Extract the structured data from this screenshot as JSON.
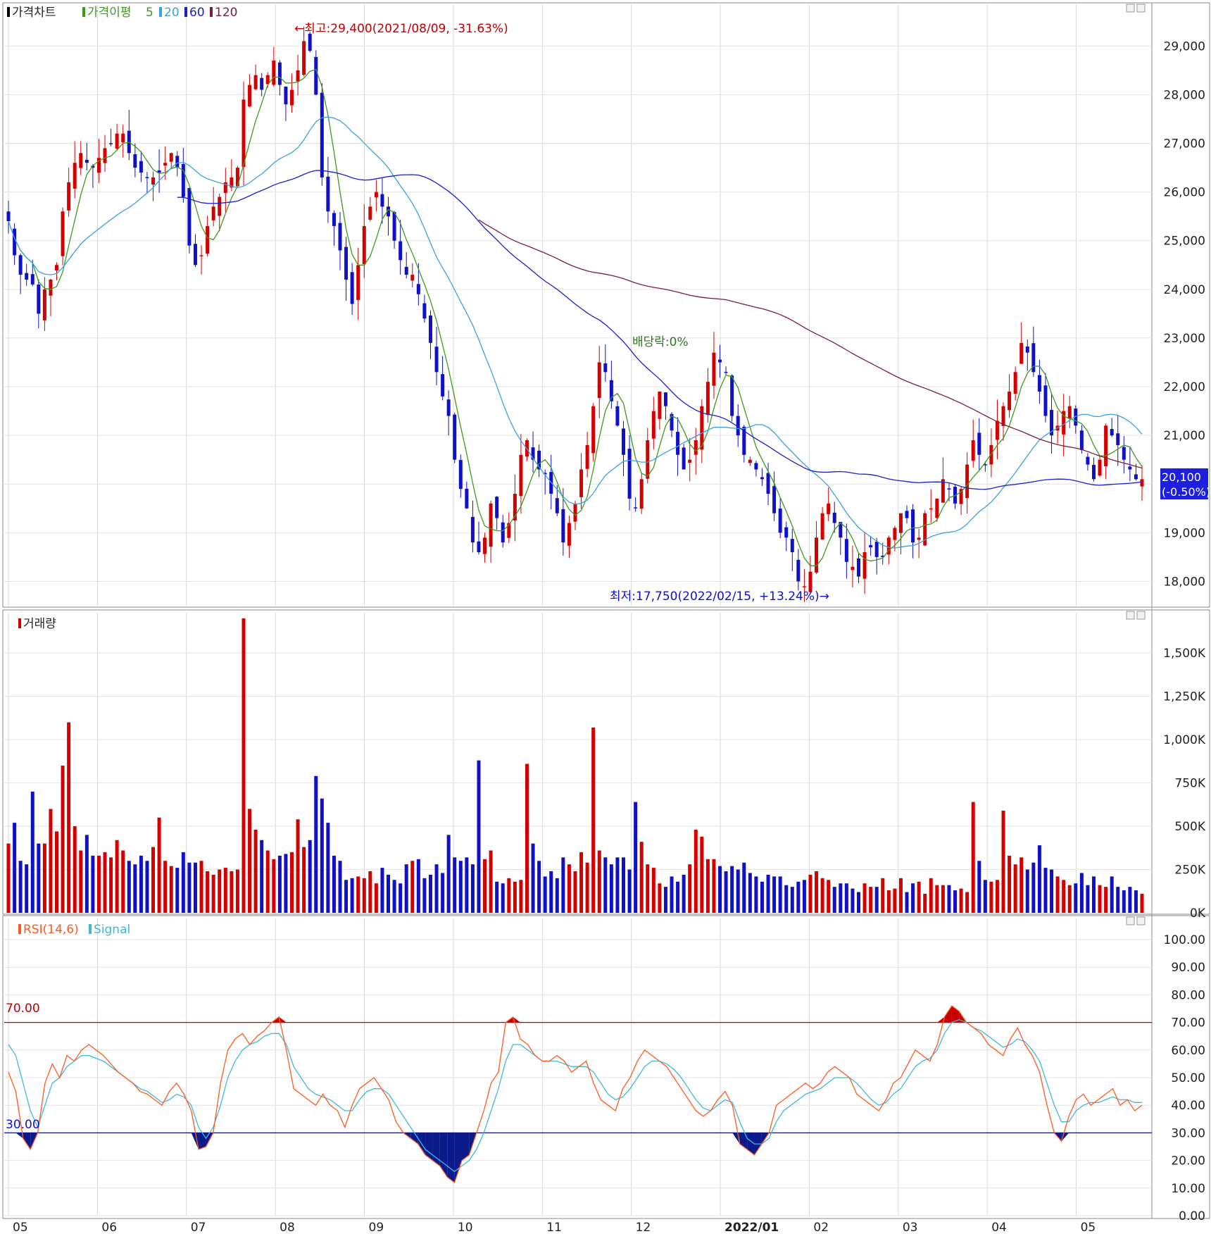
{
  "panels": {
    "price": {
      "legend_title": "가격차트",
      "legend_ma_title": "가격이평",
      "legend_ma_periods": [
        "5",
        "20",
        "60",
        "120"
      ],
      "y_ticks": [
        "29,000",
        "28,000",
        "27,000",
        "26,000",
        "25,000",
        "24,000",
        "23,000",
        "22,000",
        "21,000",
        "20,000",
        "19,000",
        "18,000"
      ],
      "current_price_label": "20,100",
      "current_change_label": "(-0.50%)",
      "annotation_high": "←최고:29,400(2021/08/09, -31.63%)",
      "annotation_low": "최저:17,750(2022/02/15, +13.24%)→",
      "annotation_dividend": "배당락:0%"
    },
    "volume": {
      "legend_title": "거래량",
      "y_ticks": [
        "1,500K",
        "1,250K",
        "1,000K",
        "750K",
        "500K",
        "250K",
        "0K"
      ]
    },
    "rsi": {
      "legend_title": "RSI(14,6)",
      "legend_signal": "Signal",
      "y_ticks": [
        "100.00",
        "90.00",
        "80.00",
        "70.00",
        "60.00",
        "50.00",
        "40.00",
        "30.00",
        "20.00",
        "10.00",
        "0.00"
      ],
      "upper_label": "70.00",
      "lower_label": "30.00"
    }
  },
  "x_axis": {
    "months": [
      "05",
      "06",
      "07",
      "08",
      "09",
      "10",
      "11",
      "12",
      "2022/01",
      "02",
      "03",
      "04",
      "05"
    ]
  },
  "colors": {
    "up": "#d40000",
    "down": "#1010c8",
    "ma5": "#3c9a1c",
    "ma20": "#3ba0e0",
    "ma60": "#1e1ec8",
    "ma120": "#7a1e3c",
    "rsi": "#ff5a1e",
    "signal": "#40b8d8",
    "grid": "#e0e0e0"
  },
  "chart_data": [
    {
      "type": "candlestick",
      "title": "가격차트",
      "ylim": [
        17500,
        29800
      ],
      "ma_periods": [
        5,
        20,
        60,
        120
      ],
      "high_point": {
        "value": 29400,
        "date": "2021/08/09"
      },
      "low_point": {
        "value": 17750,
        "date": "2022/02/15"
      },
      "last_close": 20100,
      "last_change_pct": -0.5,
      "x_month_labels": [
        "05",
        "06",
        "07",
        "08",
        "09",
        "10",
        "11",
        "12",
        "2022/01",
        "02",
        "03",
        "04",
        "05"
      ],
      "closes_approx": [
        25400,
        24700,
        24300,
        24200,
        24100,
        23500,
        24000,
        24200,
        24500,
        25600,
        26200,
        26600,
        26800,
        26600,
        26500,
        26700,
        26900,
        27000,
        27200,
        27200,
        26800,
        26500,
        26400,
        26300,
        26300,
        26400,
        26600,
        26800,
        26500,
        25900,
        24900,
        24500,
        24700,
        25300,
        25700,
        25900,
        26200,
        26300,
        26500,
        27900,
        28200,
        28400,
        28100,
        28400,
        28700,
        28200,
        27800,
        28100,
        28500,
        29100,
        28900,
        28000,
        26300,
        25600,
        25300,
        24800,
        24200,
        23700,
        24500,
        25300,
        25700,
        26000,
        25700,
        25500,
        25000,
        24600,
        24300,
        24300,
        23900,
        23400,
        22900,
        22300,
        21800,
        21400,
        20500,
        19900,
        19500,
        18800,
        18600,
        18900,
        19600,
        19300,
        18800,
        19200,
        19800,
        20600,
        20900,
        20500,
        20300,
        20200,
        19800,
        19400,
        18800,
        19200,
        19600,
        20300,
        20800,
        21600,
        22500,
        22300,
        21700,
        21200,
        20600,
        19700,
        19500,
        20100,
        20900,
        21500,
        21900,
        21600,
        21100,
        20600,
        20300,
        20500,
        20900,
        21600,
        22100,
        22700,
        22500,
        22300,
        21400,
        21000,
        20600,
        20500,
        20300,
        20100,
        19800,
        19400,
        19000,
        18900,
        18600,
        18000,
        17900,
        18200,
        18900,
        19400,
        19600,
        19200,
        18900,
        18400,
        18300,
        18100,
        18600,
        18700,
        18500,
        18500,
        18900,
        19100,
        19400,
        19300,
        18800,
        18900,
        19400,
        19500,
        19700,
        20100,
        19900,
        19600,
        19900,
        20400,
        20900,
        20600,
        20400,
        20800,
        21300,
        21600,
        21900,
        22300,
        22900,
        22700,
        22300,
        21900,
        21400,
        21000,
        21200,
        21500,
        21600,
        21200,
        20700,
        20400,
        20100,
        20500,
        21200,
        21000,
        20800,
        20500,
        20300,
        20100,
        20100
      ]
    },
    {
      "type": "bar",
      "title": "거래량",
      "ylim": [
        0,
        1700000
      ],
      "series": [
        {
          "name": "거래량",
          "values": [
            400,
            520,
            300,
            280,
            700,
            400,
            400,
            600,
            470,
            850,
            1100,
            500,
            360,
            450,
            330,
            330,
            350,
            320,
            420,
            360,
            300,
            280,
            330,
            300,
            380,
            550,
            300,
            270,
            260,
            350,
            290,
            290,
            300,
            240,
            220,
            250,
            260,
            240,
            250,
            1700,
            600,
            480,
            420,
            360,
            310,
            330,
            340,
            350,
            540,
            380,
            420,
            790,
            660,
            520,
            330,
            300,
            190,
            200,
            210,
            200,
            240,
            170,
            260,
            220,
            190,
            170,
            280,
            300,
            310,
            200,
            220,
            280,
            230,
            450,
            320,
            300,
            320,
            280,
            880,
            310,
            360,
            180,
            170,
            200,
            180,
            190,
            860,
            400,
            300,
            210,
            240,
            200,
            320,
            280,
            240,
            350,
            290,
            1070,
            360,
            320,
            280,
            320,
            320,
            250,
            640,
            410,
            280,
            260,
            170,
            150,
            210,
            180,
            220,
            280,
            480,
            440,
            310,
            310,
            270,
            240,
            270,
            250,
            290,
            230,
            210,
            180,
            220,
            210,
            210,
            160,
            150,
            180,
            190,
            220,
            240,
            200,
            190,
            150,
            170,
            170,
            140,
            120,
            170,
            150,
            150,
            200,
            130,
            140,
            200,
            120,
            170,
            180,
            110,
            200,
            160,
            160,
            160,
            130,
            140,
            120,
            640,
            300,
            190,
            180,
            190,
            590,
            330,
            280,
            320,
            250,
            290,
            390,
            260,
            250,
            210,
            190,
            160,
            170,
            230,
            160,
            210,
            160,
            150,
            210,
            150,
            130,
            150,
            130,
            110
          ]
        }
      ]
    },
    {
      "type": "line",
      "title": "RSI(14,6)",
      "ylim": [
        0,
        100
      ],
      "reference_lines": [
        70,
        30
      ],
      "series": [
        {
          "name": "RSI(14,6)",
          "values": [
            52,
            45,
            28,
            24,
            30,
            48,
            55,
            50,
            58,
            56,
            60,
            62,
            60,
            58,
            55,
            52,
            50,
            48,
            45,
            44,
            42,
            40,
            45,
            48,
            44,
            38,
            24,
            25,
            30,
            48,
            60,
            64,
            66,
            62,
            65,
            67,
            70,
            72,
            60,
            46,
            44,
            42,
            40,
            44,
            40,
            38,
            32,
            40,
            46,
            48,
            50,
            46,
            42,
            34,
            30,
            28,
            26,
            22,
            20,
            18,
            14,
            12,
            20,
            22,
            30,
            38,
            48,
            52,
            70,
            72,
            64,
            62,
            58,
            56,
            56,
            58,
            56,
            52,
            54,
            56,
            48,
            42,
            40,
            38,
            46,
            50,
            56,
            60,
            58,
            56,
            54,
            50,
            46,
            42,
            38,
            36,
            38,
            42,
            45,
            40,
            26,
            24,
            22,
            26,
            30,
            40,
            42,
            44,
            46,
            48,
            46,
            48,
            52,
            54,
            52,
            50,
            44,
            42,
            40,
            38,
            42,
            48,
            50,
            55,
            60,
            58,
            56,
            62,
            72,
            76,
            74,
            70,
            68,
            66,
            62,
            60,
            58,
            64,
            68,
            62,
            58,
            52,
            40,
            30,
            27,
            36,
            42,
            44,
            40,
            42,
            44,
            46,
            40,
            42,
            38,
            40
          ]
        },
        {
          "name": "Signal",
          "values": [
            62,
            58,
            48,
            38,
            32,
            40,
            48,
            50,
            54,
            56,
            58,
            58,
            57,
            56,
            54,
            52,
            50,
            48,
            46,
            45,
            43,
            41,
            42,
            44,
            43,
            40,
            32,
            28,
            32,
            40,
            50,
            56,
            60,
            62,
            63,
            65,
            66,
            66,
            62,
            54,
            50,
            46,
            44,
            43,
            42,
            40,
            38,
            38,
            42,
            45,
            46,
            46,
            44,
            40,
            36,
            32,
            28,
            24,
            22,
            20,
            18,
            16,
            18,
            20,
            24,
            30,
            38,
            46,
            56,
            62,
            62,
            60,
            58,
            56,
            56,
            56,
            55,
            54,
            54,
            54,
            52,
            48,
            44,
            42,
            43,
            46,
            50,
            54,
            56,
            56,
            55,
            53,
            50,
            46,
            42,
            39,
            38,
            40,
            42,
            41,
            34,
            28,
            26,
            26,
            28,
            34,
            38,
            40,
            42,
            44,
            45,
            46,
            48,
            50,
            50,
            50,
            48,
            45,
            42,
            40,
            41,
            44,
            46,
            50,
            54,
            56,
            57,
            60,
            66,
            70,
            71,
            70,
            68,
            67,
            65,
            63,
            61,
            62,
            64,
            63,
            60,
            56,
            48,
            40,
            34,
            34,
            38,
            40,
            41,
            41,
            42,
            43,
            42,
            42,
            41,
            41
          ]
        }
      ]
    }
  ]
}
